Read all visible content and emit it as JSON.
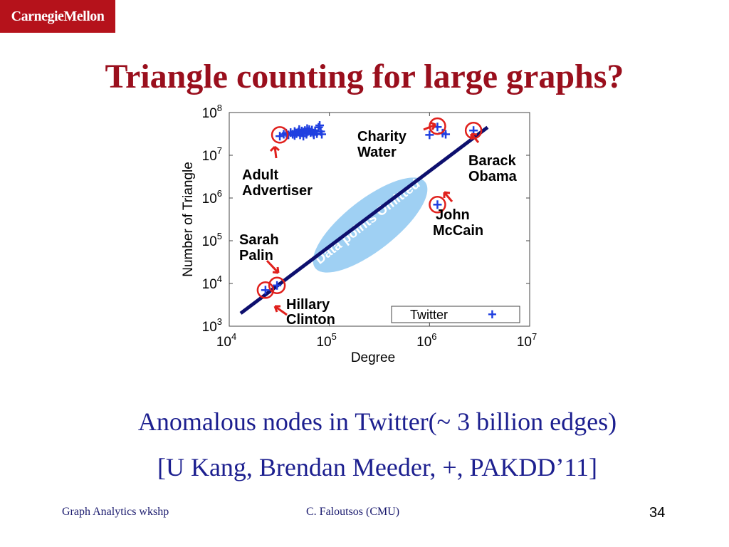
{
  "logo": {
    "text": "CarnegieMellon"
  },
  "slide": {
    "title": "Triangle counting for large graphs?",
    "caption_line1": "Anomalous nodes in Twitter(~ 3 billion edges)",
    "caption_line2": "[U Kang, Brendan Meeder, +, PAKDD’11]"
  },
  "footer": {
    "left": "Graph Analytics wkshp",
    "center": "C. Faloutsos (CMU)",
    "page": "34"
  },
  "colors": {
    "title": "#9a0f1d",
    "caption": "#1c1f8f",
    "points": "#1f3fe0",
    "fit_line": "#0d0f6e",
    "highlight_circle": "#e0201c",
    "omitted_ellipse": "#9fd0f3"
  },
  "chart_data": {
    "type": "scatter",
    "x_scale": "log",
    "y_scale": "log",
    "xlim": [
      10000,
      10000000
    ],
    "ylim": [
      1000,
      100000000
    ],
    "xlabel": "Degree",
    "ylabel": "Number of Triangle",
    "x_ticks": [
      {
        "base": "10",
        "exp": "4",
        "v": 10000
      },
      {
        "base": "10",
        "exp": "5",
        "v": 100000
      },
      {
        "base": "10",
        "exp": "6",
        "v": 1000000
      },
      {
        "base": "10",
        "exp": "7",
        "v": 10000000
      }
    ],
    "y_ticks": [
      {
        "base": "10",
        "exp": "3",
        "v": 1000
      },
      {
        "base": "10",
        "exp": "4",
        "v": 10000
      },
      {
        "base": "10",
        "exp": "5",
        "v": 100000
      },
      {
        "base": "10",
        "exp": "6",
        "v": 1000000
      },
      {
        "base": "10",
        "exp": "7",
        "v": 10000000
      },
      {
        "base": "10",
        "exp": "8",
        "v": 100000000
      }
    ],
    "legend": {
      "label": "Twitter",
      "position": "bottom-right"
    },
    "series": [
      {
        "name": "Twitter",
        "points": [
          [
            32000,
            28000000
          ],
          [
            35000,
            31000000
          ],
          [
            37000,
            33000000
          ],
          [
            39000,
            30000000
          ],
          [
            41000,
            34000000
          ],
          [
            43000,
            31000000
          ],
          [
            45000,
            36000000
          ],
          [
            47000,
            32000000
          ],
          [
            49000,
            35000000
          ],
          [
            51000,
            30000000
          ],
          [
            53000,
            37000000
          ],
          [
            55000,
            33000000
          ],
          [
            57000,
            38000000
          ],
          [
            59000,
            31000000
          ],
          [
            61000,
            36000000
          ],
          [
            63000,
            40000000
          ],
          [
            65000,
            34000000
          ],
          [
            67000,
            39000000
          ],
          [
            69000,
            33000000
          ],
          [
            72000,
            37000000
          ],
          [
            75000,
            32000000
          ],
          [
            78000,
            45000000
          ],
          [
            80000,
            50000000
          ],
          [
            82000,
            36000000
          ],
          [
            84000,
            31000000
          ],
          [
            45000,
            29000000
          ],
          [
            50000,
            40000000
          ],
          [
            55000,
            28000000
          ],
          [
            60000,
            42000000
          ],
          [
            70000,
            30000000
          ],
          [
            1000000,
            30000000
          ],
          [
            1350000,
            33000000
          ],
          [
            1450000,
            31000000
          ],
          [
            1200000,
            46000000
          ],
          [
            2750000,
            38000000
          ],
          [
            1200000,
            700000
          ],
          [
            23000,
            7000
          ],
          [
            30000,
            9000
          ]
        ]
      }
    ],
    "fit_line": [
      [
        13000,
        2000
      ],
      [
        3800000,
        45000000
      ]
    ],
    "highlighted": [
      {
        "label": "Adult Advertiser",
        "x": 32000,
        "y": 30000000
      },
      {
        "label": "Charity Water",
        "x": 1200000,
        "y": 48000000
      },
      {
        "label": "Barack Obama",
        "x": 2750000,
        "y": 38000000
      },
      {
        "label": "John McCain",
        "x": 1200000,
        "y": 700000
      },
      {
        "label": "Sarah Palin",
        "x": 30000,
        "y": 9000
      },
      {
        "label": "Hillary Clinton",
        "x": 23000,
        "y": 7000
      }
    ],
    "annotation": "Data points Omitted"
  }
}
